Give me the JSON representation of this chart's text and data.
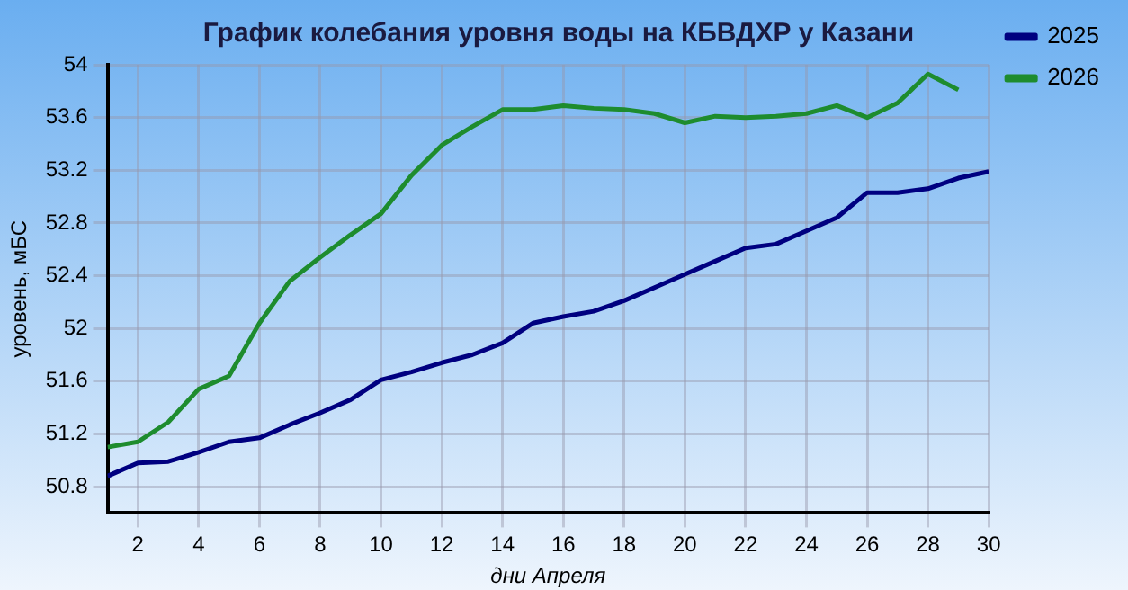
{
  "chart_data": {
    "type": "line",
    "title": "График колебания уровня воды на КБВДХР у Казани",
    "xlabel": "дни Апреля",
    "ylabel": "уровень, мБС",
    "x": [
      1,
      2,
      3,
      4,
      5,
      6,
      7,
      8,
      9,
      10,
      11,
      12,
      13,
      14,
      15,
      16,
      17,
      18,
      19,
      20,
      21,
      22,
      23,
      24,
      25,
      26,
      27,
      28,
      29,
      30
    ],
    "series": [
      {
        "name": "2025",
        "color": "#000080",
        "values": [
          50.88,
          50.98,
          50.99,
          51.06,
          51.14,
          51.17,
          51.27,
          51.36,
          51.46,
          51.61,
          51.67,
          51.74,
          51.8,
          51.89,
          52.04,
          52.09,
          52.13,
          52.21,
          52.31,
          52.41,
          52.51,
          52.61,
          52.64,
          52.74,
          52.84,
          53.03,
          53.03,
          53.06,
          53.14,
          53.19
        ]
      },
      {
        "name": "2026",
        "color": "#1e8c2e",
        "values": [
          51.1,
          51.14,
          51.29,
          51.54,
          51.64,
          52.04,
          52.36,
          52.54,
          52.71,
          52.87,
          53.16,
          53.39,
          53.53,
          53.66,
          53.66,
          53.69,
          53.67,
          53.66,
          53.63,
          53.56,
          53.61,
          53.6,
          53.61,
          53.63,
          53.69,
          53.6,
          53.71,
          53.93,
          53.81,
          null
        ]
      }
    ],
    "xlim": [
      1,
      30
    ],
    "xticks": [
      2,
      4,
      6,
      8,
      10,
      12,
      14,
      16,
      18,
      20,
      22,
      24,
      26,
      28,
      30
    ],
    "ylim": [
      50.6,
      54
    ],
    "yticks": [
      50.8,
      51.2,
      51.6,
      52,
      52.4,
      52.8,
      53.2,
      53.6,
      54
    ],
    "grid": true,
    "legend": "right",
    "marker": "none",
    "line_style": "solid"
  }
}
